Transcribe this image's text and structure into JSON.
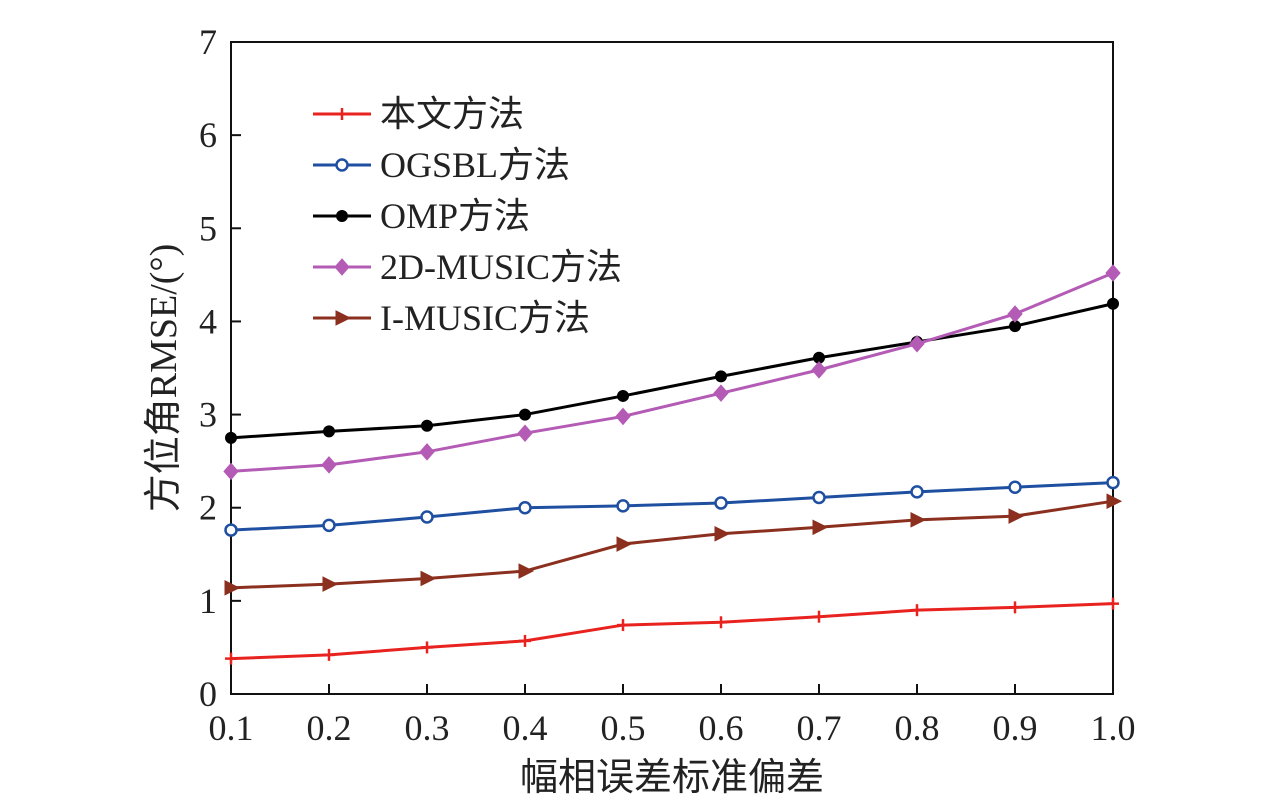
{
  "chart_data": {
    "type": "line",
    "xlabel": "幅相误差标准偏差",
    "ylabel": "方位角RMSE/(°)",
    "x": [
      0.1,
      0.2,
      0.3,
      0.4,
      0.5,
      0.6,
      0.7,
      0.8,
      0.9,
      1.0
    ],
    "x_tick_labels": [
      "0.1",
      "0.2",
      "0.3",
      "0.4",
      "0.5",
      "0.6",
      "0.7",
      "0.8",
      "0.9",
      "1.0"
    ],
    "y_ticks": [
      0,
      1,
      2,
      3,
      4,
      5,
      6,
      7
    ],
    "y_tick_labels": [
      "0",
      "1",
      "2",
      "3",
      "4",
      "5",
      "6",
      "7"
    ],
    "xlim": [
      0.1,
      1.0
    ],
    "ylim": [
      0,
      7
    ],
    "grid": false,
    "legend_position": "top-left",
    "series": [
      {
        "name": "本文方法",
        "color": "#e8231f",
        "marker": "plus",
        "values": [
          0.38,
          0.42,
          0.5,
          0.57,
          0.74,
          0.77,
          0.83,
          0.9,
          0.93,
          0.97
        ]
      },
      {
        "name": "OGSBL方法",
        "color": "#1f4fa0",
        "marker": "circle-open",
        "values": [
          1.76,
          1.81,
          1.9,
          2.0,
          2.02,
          2.05,
          2.11,
          2.17,
          2.22,
          2.27
        ]
      },
      {
        "name": "OMP方法",
        "color": "#000000",
        "marker": "circle-filled",
        "values": [
          2.75,
          2.82,
          2.88,
          3.0,
          3.2,
          3.41,
          3.61,
          3.78,
          3.95,
          4.19
        ]
      },
      {
        "name": "2D-MUSIC方法",
        "color": "#b35bb5",
        "marker": "diamond",
        "values": [
          2.39,
          2.46,
          2.6,
          2.8,
          2.98,
          3.23,
          3.48,
          3.76,
          4.08,
          4.52
        ]
      },
      {
        "name": "I-MUSIC方法",
        "color": "#8b2f1e",
        "marker": "triangle-right",
        "values": [
          1.14,
          1.18,
          1.24,
          1.32,
          1.61,
          1.72,
          1.79,
          1.87,
          1.91,
          2.07
        ]
      }
    ]
  }
}
